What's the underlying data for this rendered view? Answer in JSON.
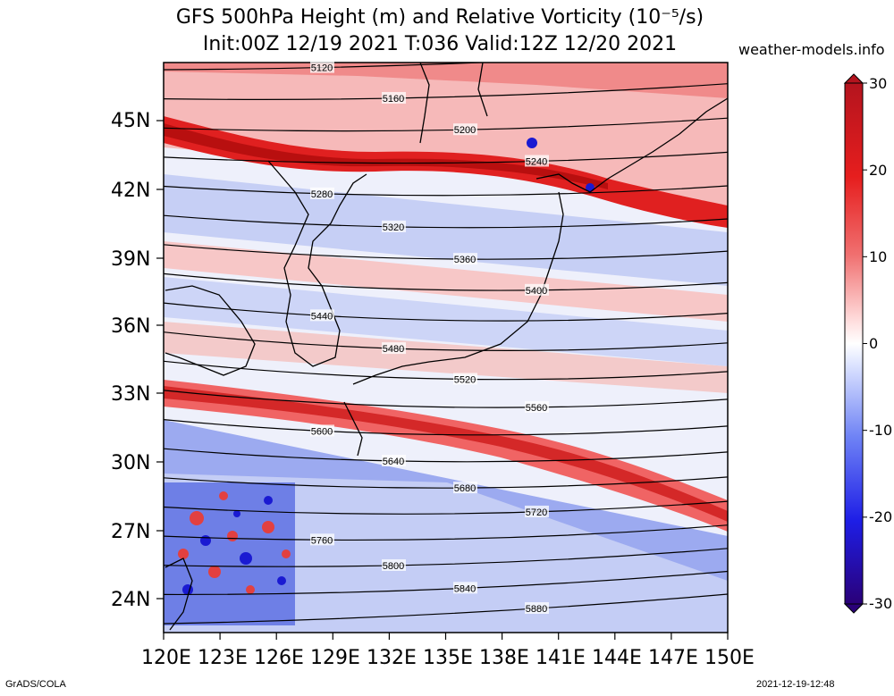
{
  "title_line1": "GFS 500hPa Height (m) and Relative Vorticity (10⁻⁵/s)",
  "title_line2": "Init:00Z 12/19 2021 T:036 Valid:12Z 12/20 2021",
  "site": "weather-models.info",
  "footer_left": "GrADS/COLA",
  "footer_right": "2021-12-19-12:48",
  "lat_labels": [
    "45N",
    "42N",
    "39N",
    "36N",
    "33N",
    "30N",
    "27N",
    "24N"
  ],
  "lon_labels": [
    "120E",
    "123E",
    "126E",
    "129E",
    "132E",
    "135E",
    "138E",
    "141E",
    "144E",
    "147E",
    "150E"
  ],
  "colorbar": {
    "labels": [
      "30",
      "20",
      "10",
      "0",
      "-10",
      "-20",
      "-30"
    ],
    "range": [
      -30,
      30
    ],
    "colors": {
      "strong_pos": "#c8141e",
      "pos": "#f06464",
      "weak_pos": "#ffd2d2",
      "zero": "#ffffff",
      "weak_neg": "#c8d2ff",
      "neg": "#5064f0",
      "strong_neg": "#1e0096"
    }
  },
  "contours": [
    {
      "label": "5120",
      "value": 5120
    },
    {
      "label": "5160",
      "value": 5160
    },
    {
      "label": "5200",
      "value": 5200
    },
    {
      "label": "5240",
      "value": 5240
    },
    {
      "label": "5280",
      "value": 5280
    },
    {
      "label": "5320",
      "value": 5320
    },
    {
      "label": "5360",
      "value": 5360
    },
    {
      "label": "5400",
      "value": 5400
    },
    {
      "label": "5440",
      "value": 5440
    },
    {
      "label": "5480",
      "value": 5480
    },
    {
      "label": "5520",
      "value": 5520
    },
    {
      "label": "5560",
      "value": 5560
    },
    {
      "label": "5600",
      "value": 5600
    },
    {
      "label": "5640",
      "value": 5640
    },
    {
      "label": "5680",
      "value": 5680
    },
    {
      "label": "5720",
      "value": 5720
    },
    {
      "label": "5760",
      "value": 5760
    },
    {
      "label": "5800",
      "value": 5800
    },
    {
      "label": "5840",
      "value": 5840
    },
    {
      "label": "5880",
      "value": 5880
    }
  ]
}
